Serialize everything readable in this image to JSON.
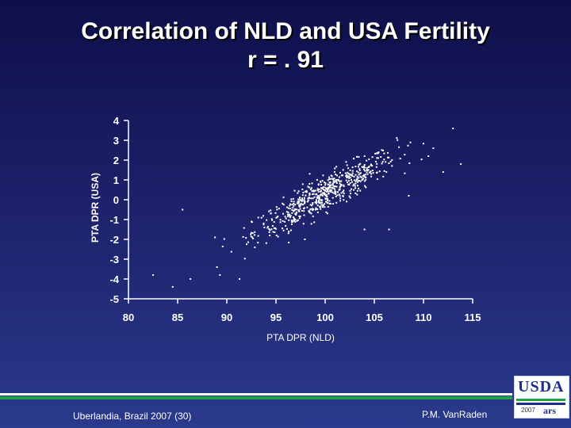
{
  "title_line1": "Correlation of NLD and USA Fertility",
  "title_line2": "r = . 91",
  "footer_left": "Uberlandia, Brazil 2007 (30)",
  "footer_right": "P.M. VanRaden",
  "logo": {
    "text": "USDA",
    "year": "2007",
    "ars": "ars"
  },
  "colors": {
    "background_top": "#0e0f4a",
    "background_bottom": "#2a3a8c",
    "points": "#ffffff",
    "accent_green": "#1fa34a"
  },
  "chart_data": {
    "type": "scatter",
    "title": "Correlation of NLD and USA Fertility",
    "subtitle": "r = . 91",
    "xlabel": "PTA DPR (NLD)",
    "ylabel": "PTA DPR (USA)",
    "xlim": [
      80,
      115
    ],
    "ylim": [
      -5,
      4
    ],
    "xticks": [
      80,
      85,
      90,
      95,
      100,
      105,
      110,
      115
    ],
    "yticks": [
      4,
      3,
      2,
      1,
      0,
      -1,
      -2,
      -3,
      -4,
      -5
    ],
    "grid": false,
    "cloud": {
      "n": 600,
      "mean_x": 100,
      "mean_y": 0.3,
      "sd_x": 3.6,
      "sd_y": 1.05,
      "r": 0.91,
      "xmin": 88,
      "xmax": 113,
      "ymin": -3.6,
      "ymax": 3.5
    },
    "outliers": [
      [
        82.5,
        -3.8
      ],
      [
        84.5,
        -4.4
      ],
      [
        86.3,
        -4.0
      ],
      [
        85.5,
        -0.5
      ],
      [
        88.8,
        -1.9
      ],
      [
        89.0,
        -3.4
      ],
      [
        89.3,
        -3.8
      ],
      [
        91.3,
        -4.0
      ],
      [
        92.5,
        -1.1
      ],
      [
        93.2,
        -0.9
      ],
      [
        113.0,
        3.6
      ],
      [
        111.0,
        2.6
      ],
      [
        110.5,
        2.2
      ],
      [
        112.0,
        1.4
      ],
      [
        113.8,
        1.8
      ],
      [
        108.5,
        0.2
      ],
      [
        104.0,
        -1.5
      ],
      [
        106.5,
        -1.5
      ]
    ]
  }
}
